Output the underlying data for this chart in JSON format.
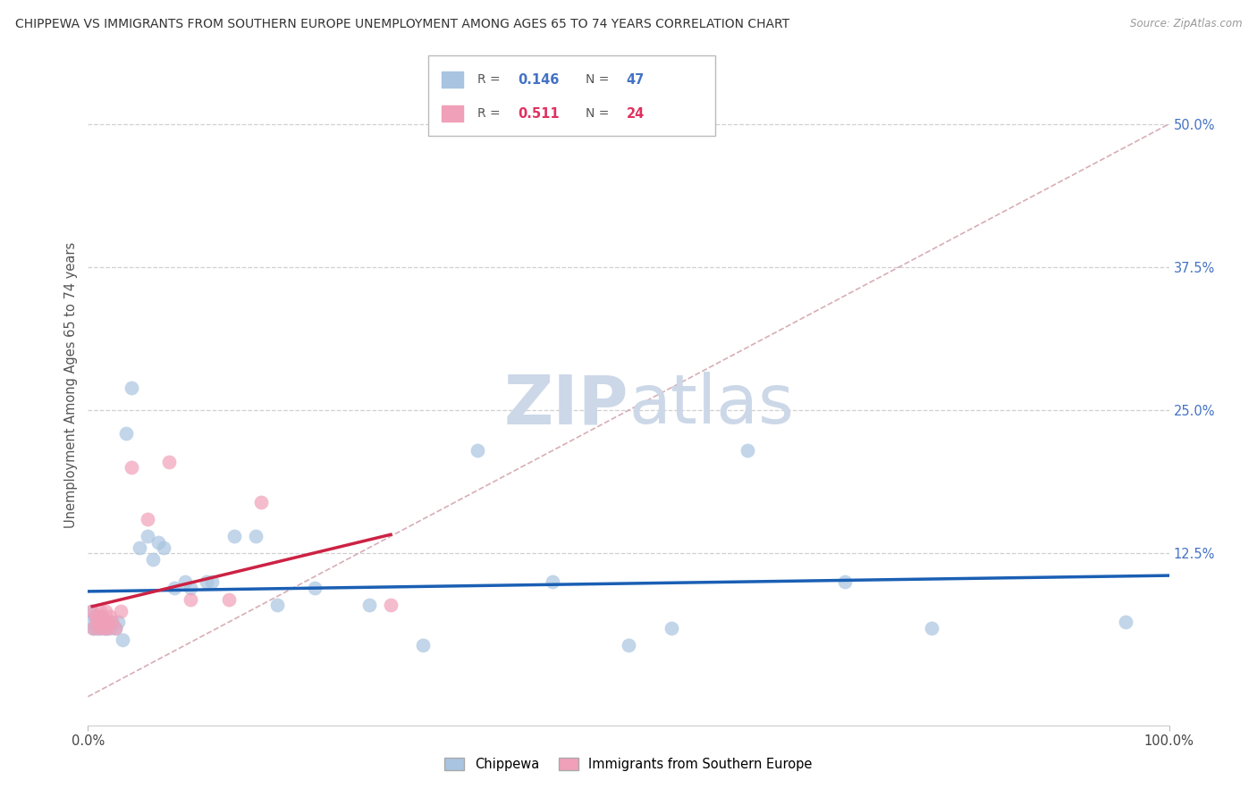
{
  "title": "CHIPPEWA VS IMMIGRANTS FROM SOUTHERN EUROPE UNEMPLOYMENT AMONG AGES 65 TO 74 YEARS CORRELATION CHART",
  "source": "Source: ZipAtlas.com",
  "ylabel": "Unemployment Among Ages 65 to 74 years",
  "right_ytick_labels": [
    "50.0%",
    "37.5%",
    "25.0%",
    "12.5%"
  ],
  "right_ytick_vals": [
    0.5,
    0.375,
    0.25,
    0.125
  ],
  "xmin": 0.0,
  "xmax": 1.0,
  "ymin": -0.025,
  "ymax": 0.57,
  "r1": "0.146",
  "n1": "47",
  "r2": "0.511",
  "n2": "24",
  "chippewa_color": "#a8c4e0",
  "southern_color": "#f0a0b8",
  "trend_chippewa": "#1a5fb4",
  "trend_southern": "#cc2244",
  "diagonal_color": "#d0a0a8",
  "watermark_color": "#ccd8e8",
  "background": "#ffffff",
  "grid_color": "#d0d0d0",
  "chippewa_x": [
    0.003,
    0.004,
    0.005,
    0.006,
    0.007,
    0.008,
    0.009,
    0.01,
    0.011,
    0.012,
    0.013,
    0.014,
    0.015,
    0.016,
    0.017,
    0.018,
    0.02,
    0.022,
    0.025,
    0.028,
    0.032,
    0.035,
    0.04,
    0.048,
    0.055,
    0.065,
    0.08,
    0.095,
    0.115,
    0.135,
    0.155,
    0.175,
    0.21,
    0.26,
    0.31,
    0.36,
    0.43,
    0.5,
    0.54,
    0.61,
    0.7,
    0.78,
    0.96,
    0.06,
    0.07,
    0.09,
    0.11
  ],
  "chippewa_y": [
    0.075,
    0.065,
    0.06,
    0.07,
    0.06,
    0.065,
    0.06,
    0.07,
    0.065,
    0.06,
    0.07,
    0.065,
    0.06,
    0.065,
    0.06,
    0.065,
    0.06,
    0.065,
    0.06,
    0.065,
    0.05,
    0.23,
    0.27,
    0.13,
    0.14,
    0.135,
    0.095,
    0.095,
    0.1,
    0.14,
    0.14,
    0.08,
    0.095,
    0.08,
    0.045,
    0.215,
    0.1,
    0.045,
    0.06,
    0.215,
    0.1,
    0.06,
    0.065,
    0.12,
    0.13,
    0.1,
    0.1
  ],
  "southern_x": [
    0.004,
    0.005,
    0.007,
    0.008,
    0.01,
    0.011,
    0.012,
    0.013,
    0.014,
    0.015,
    0.016,
    0.017,
    0.018,
    0.02,
    0.022,
    0.025,
    0.03,
    0.04,
    0.055,
    0.075,
    0.095,
    0.13,
    0.16,
    0.28
  ],
  "southern_y": [
    0.075,
    0.06,
    0.07,
    0.065,
    0.06,
    0.075,
    0.065,
    0.07,
    0.065,
    0.06,
    0.075,
    0.065,
    0.06,
    0.07,
    0.065,
    0.06,
    0.075,
    0.2,
    0.155,
    0.205,
    0.085,
    0.085,
    0.17,
    0.08
  ],
  "legend_labels": [
    "Chippewa",
    "Immigrants from Southern Europe"
  ],
  "legend_r_color": "#4472c4",
  "legend_r2_color": "#e03060"
}
